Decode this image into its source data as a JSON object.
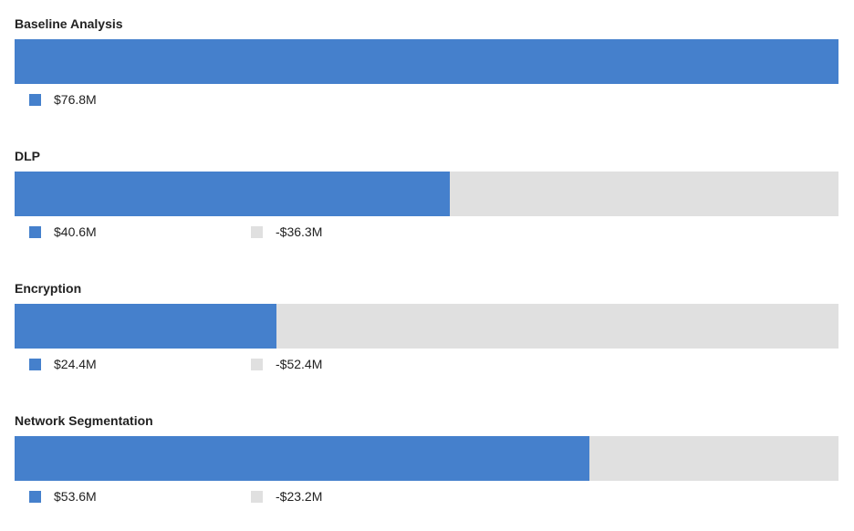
{
  "colors": {
    "primary": "#4580cc",
    "remainder": "#e0e0e0"
  },
  "chart_data": {
    "type": "bar",
    "orientation": "horizontal",
    "stacked": true,
    "xlim": [
      0,
      76.8
    ],
    "unit": "$M",
    "legend": "below each bar",
    "groups": [
      {
        "title": "Baseline Analysis",
        "value": 76.8,
        "value_label": "$76.8M",
        "delta": null,
        "delta_label": null
      },
      {
        "title": "DLP",
        "value": 40.6,
        "value_label": "$40.6M",
        "delta": -36.3,
        "delta_label": "-$36.3M"
      },
      {
        "title": "Encryption",
        "value": 24.4,
        "value_label": "$24.4M",
        "delta": -52.4,
        "delta_label": "-$52.4M"
      },
      {
        "title": "Network Segmentation",
        "value": 53.6,
        "value_label": "$53.6M",
        "delta": -23.2,
        "delta_label": "-$23.2M"
      }
    ]
  }
}
